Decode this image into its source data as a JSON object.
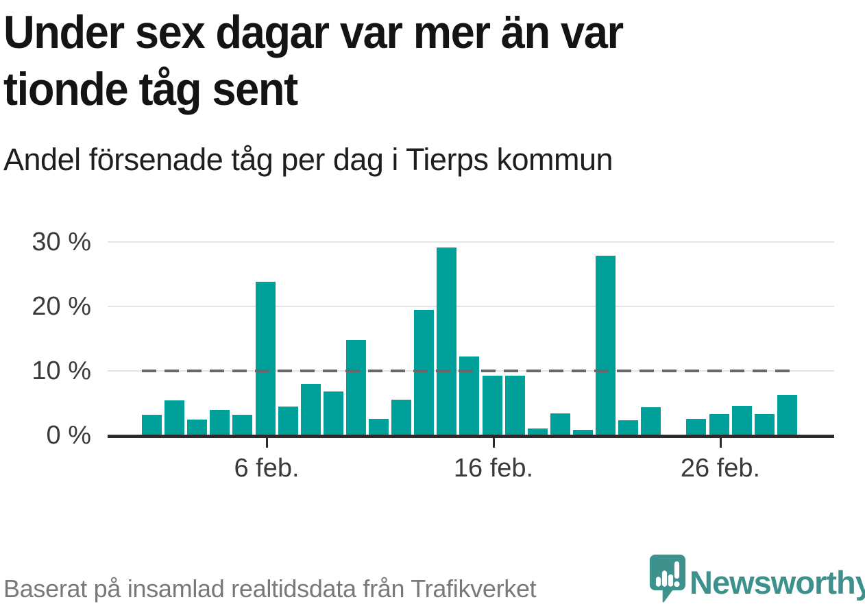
{
  "header": {
    "title": "Under sex dagar var mer än var tionde tåg sent",
    "subtitle": "Andel försenade tåg per dag i Tierps kommun"
  },
  "chart_data": {
    "type": "bar",
    "title": "Under sex dagar var mer än var tionde tåg sent",
    "subtitle": "Andel försenade tåg per dag i Tierps kommun",
    "unit": "%",
    "categories": [
      "1 feb.",
      "2 feb.",
      "3 feb.",
      "4 feb.",
      "5 feb.",
      "6 feb.",
      "7 feb.",
      "8 feb.",
      "9 feb.",
      "10 feb.",
      "11 feb.",
      "12 feb.",
      "13 feb.",
      "14 feb.",
      "15 feb.",
      "16 feb.",
      "17 feb.",
      "18 feb.",
      "19 feb.",
      "20 feb.",
      "21 feb.",
      "22 feb.",
      "23 feb.",
      "24 feb.",
      "25 feb.",
      "26 feb.",
      "27 feb.",
      "28 feb.",
      "29 feb."
    ],
    "values": [
      3.2,
      5.4,
      2.4,
      3.9,
      3.2,
      23.8,
      4.5,
      8.0,
      6.8,
      14.8,
      2.6,
      5.5,
      19.5,
      29.2,
      12.2,
      9.3,
      9.3,
      1.1,
      3.4,
      0.9,
      27.9,
      2.3,
      4.4,
      0,
      2.5,
      3.3,
      4.6,
      3.3,
      6.3
    ],
    "xlabel": "",
    "ylabel": "",
    "ylim": [
      0,
      30
    ],
    "yticks": [
      {
        "value": 0,
        "label": "0 %"
      },
      {
        "value": 10,
        "label": "10 %"
      },
      {
        "value": 20,
        "label": "20 %"
      },
      {
        "value": 30,
        "label": "30 %"
      }
    ],
    "xticks": [
      {
        "day": 6,
        "label": "6 feb."
      },
      {
        "day": 16,
        "label": "16 feb."
      },
      {
        "day": 26,
        "label": "26 feb."
      }
    ],
    "reference_line": {
      "value": 10,
      "style": "dashed"
    },
    "grid": "horizontal",
    "legend": "none",
    "bar_color": "#00a09a"
  },
  "colors": {
    "bar": "#00a09a",
    "axis": "#2b2b2b",
    "gridline": "#e4e4e4",
    "reference_line": "#686868",
    "title_text": "#141414",
    "tick_text": "#3a3a3a",
    "footer_text": "#787878",
    "brand_teal": "#3d918c"
  },
  "footer": {
    "source": "Baserat på insamlad realtidsdata från Trafikverket",
    "brand": "Newsworthy",
    "logo_icon": "newsworthy-bubble-chart-icon"
  }
}
